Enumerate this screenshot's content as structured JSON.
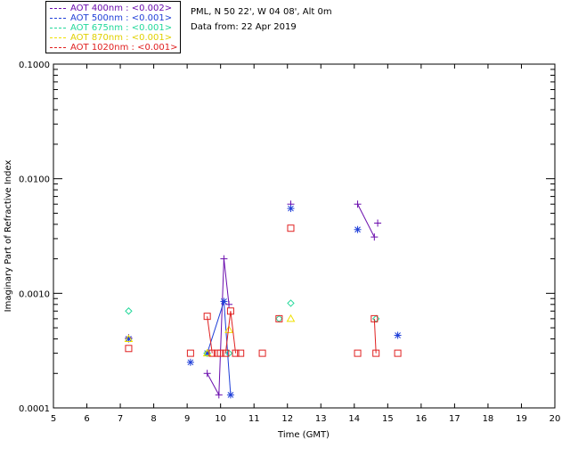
{
  "header": {
    "location": "PML, N 50 22', W 04 08', Alt 0m",
    "date": "Data from: 22 Apr 2019"
  },
  "legend": [
    {
      "label": "AOT  400nm : <0.002>",
      "color": "#6a0dad"
    },
    {
      "label": "AOT  500nm : <0.001>",
      "color": "#1f3fd8"
    },
    {
      "label": "AOT  675nm : <0.001>",
      "color": "#22d89a"
    },
    {
      "label": "AOT  870nm : <0.001>",
      "color": "#f0e000"
    },
    {
      "label": "AOT 1020nm : <0.001>",
      "color": "#e02020"
    }
  ],
  "chart_data": {
    "type": "scatter",
    "title": "",
    "xlabel": "Time (GMT)",
    "ylabel": "Imaginary Part of Refractive Index",
    "xlim": [
      5,
      20
    ],
    "ylim": [
      0.0001,
      0.1
    ],
    "yscale": "log",
    "xticks": [
      "5",
      "6",
      "7",
      "8",
      "9",
      "10",
      "11",
      "12",
      "13",
      "14",
      "15",
      "16",
      "17",
      "18",
      "19",
      "20"
    ],
    "yticks": [
      {
        "value": 0.0001,
        "label": "0.0001"
      },
      {
        "value": 0.001,
        "label": "0.0010"
      },
      {
        "value": 0.01,
        "label": "0.0100"
      },
      {
        "value": 0.1,
        "label": "0.1000"
      }
    ],
    "series": [
      {
        "name": "AOT 400nm",
        "marker": "plus",
        "color": "#6a0dad",
        "points": [
          {
            "x": 7.25,
            "y": 0.00041
          },
          {
            "x": 9.6,
            "y": 0.0002
          },
          {
            "x": 9.95,
            "y": 0.00013
          },
          {
            "x": 10.1,
            "y": 0.002
          },
          {
            "x": 10.25,
            "y": 0.0008
          },
          {
            "x": 12.1,
            "y": 0.006
          },
          {
            "x": 14.1,
            "y": 0.006
          },
          {
            "x": 14.6,
            "y": 0.0031
          },
          {
            "x": 14.7,
            "y": 0.0041
          }
        ],
        "segments": [
          [
            1,
            2
          ],
          [
            2,
            3
          ],
          [
            3,
            4
          ],
          [
            6,
            7
          ]
        ]
      },
      {
        "name": "AOT 500nm",
        "marker": "star",
        "color": "#1f3fd8",
        "points": [
          {
            "x": 7.25,
            "y": 0.0004
          },
          {
            "x": 9.1,
            "y": 0.00025
          },
          {
            "x": 9.6,
            "y": 0.0003
          },
          {
            "x": 10.1,
            "y": 0.00085
          },
          {
            "x": 10.3,
            "y": 0.00013
          },
          {
            "x": 12.1,
            "y": 0.0055
          },
          {
            "x": 14.1,
            "y": 0.0036
          },
          {
            "x": 15.3,
            "y": 0.00043
          }
        ],
        "segments": [
          [
            2,
            3
          ],
          [
            3,
            4
          ]
        ]
      },
      {
        "name": "AOT 675nm",
        "marker": "diamond",
        "color": "#22d89a",
        "points": [
          {
            "x": 7.25,
            "y": 0.0007
          },
          {
            "x": 9.6,
            "y": 0.0003
          },
          {
            "x": 10.25,
            "y": 0.0003
          },
          {
            "x": 11.75,
            "y": 0.0006
          },
          {
            "x": 12.1,
            "y": 0.00082
          },
          {
            "x": 14.65,
            "y": 0.0006
          }
        ],
        "segments": []
      },
      {
        "name": "AOT 870nm",
        "marker": "triangle",
        "color": "#f0e000",
        "points": [
          {
            "x": 7.25,
            "y": 0.0004
          },
          {
            "x": 9.6,
            "y": 0.0003
          },
          {
            "x": 10.25,
            "y": 0.00048
          },
          {
            "x": 12.1,
            "y": 0.0006
          }
        ],
        "segments": []
      },
      {
        "name": "AOT 1020nm",
        "marker": "square",
        "color": "#e02020",
        "points": [
          {
            "x": 7.25,
            "y": 0.00033
          },
          {
            "x": 9.1,
            "y": 0.0003
          },
          {
            "x": 9.6,
            "y": 0.00063
          },
          {
            "x": 9.75,
            "y": 0.0003
          },
          {
            "x": 9.9,
            "y": 0.0003
          },
          {
            "x": 10.0,
            "y": 0.0003
          },
          {
            "x": 10.15,
            "y": 0.0003
          },
          {
            "x": 10.3,
            "y": 0.0007
          },
          {
            "x": 10.45,
            "y": 0.0003
          },
          {
            "x": 10.6,
            "y": 0.0003
          },
          {
            "x": 11.25,
            "y": 0.0003
          },
          {
            "x": 11.75,
            "y": 0.0006
          },
          {
            "x": 12.1,
            "y": 0.0037
          },
          {
            "x": 14.1,
            "y": 0.0003
          },
          {
            "x": 14.6,
            "y": 0.0006
          },
          {
            "x": 14.65,
            "y": 0.0003
          },
          {
            "x": 15.3,
            "y": 0.0003
          }
        ],
        "segments": [
          [
            2,
            3
          ],
          [
            6,
            7
          ],
          [
            7,
            8
          ],
          [
            14,
            15
          ]
        ]
      }
    ]
  }
}
